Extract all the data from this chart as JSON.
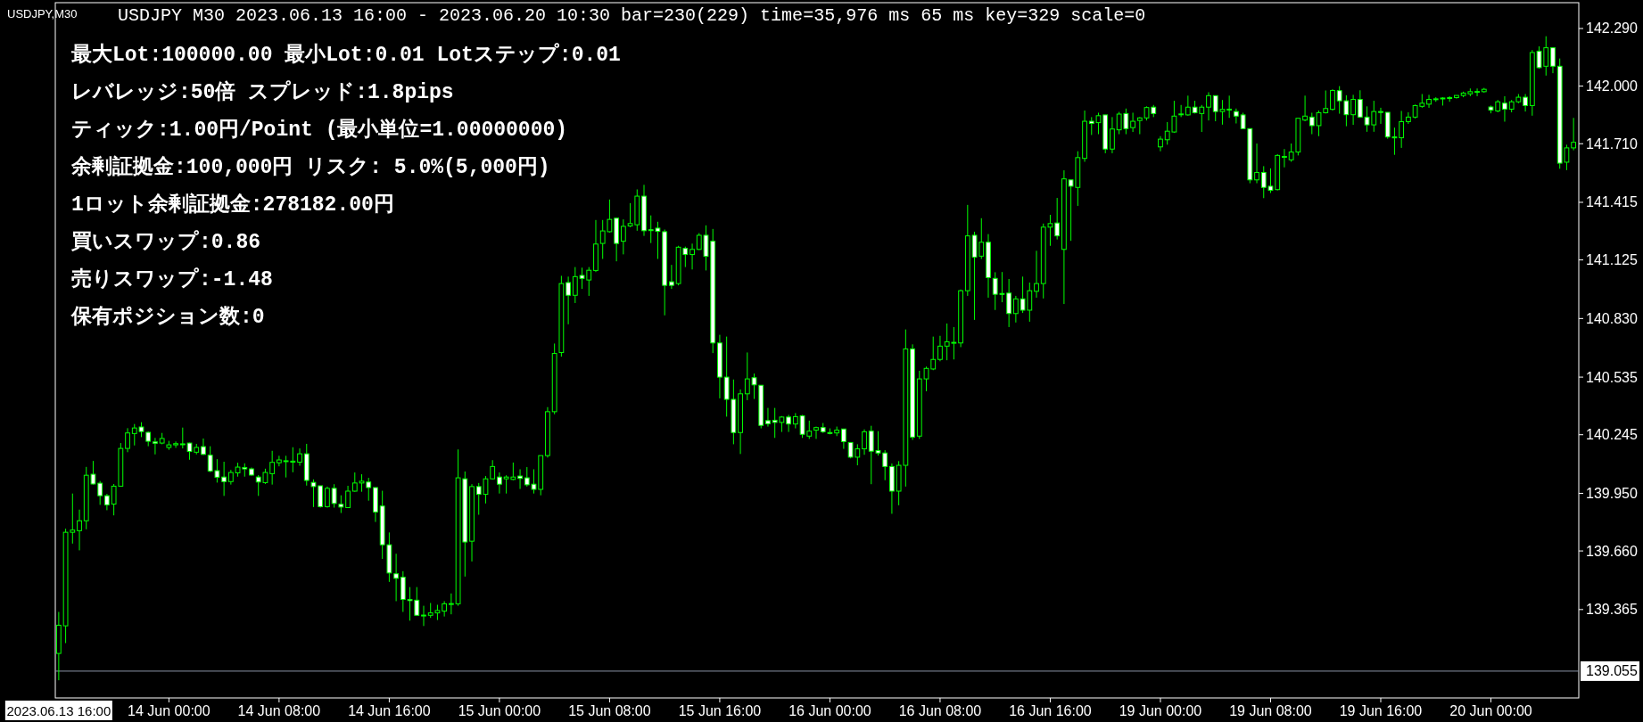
{
  "chart_data": {
    "type": "candlestick",
    "subtitle": "USDJPY,M30",
    "title": "USDJPY M30 2023.06.13 16:00 - 2023.06.20 10:30 bar=230(229) time=35,976 ms 65 ms key=329 scale=0",
    "annotations": [
      "最大Lot:100000.00 最小Lot:0.01 Lotステップ:0.01",
      "レバレッジ:50倍 スプレッド:1.8pips",
      "ティック:1.00円/Point (最小単位=1.00000000)",
      "余剰証拠金:100,000円 リスク: 5.0%(5,000円)",
      "1ロット余剰証拠金:278182.00円",
      "買いスワップ:0.86",
      "売りスワップ:-1.48",
      "保有ポジション数:0"
    ],
    "color": "#00ff00",
    "ylim": [
      138.92,
      142.42
    ],
    "yticks": [
      139.365,
      {
        "value": 139.66,
        "label": "139.660"
      },
      {
        "value": 139.95,
        "label": "139.950"
      },
      140.245,
      140.535,
      {
        "value": 140.83,
        "label": "140.830"
      },
      141.125,
      141.415,
      {
        "value": 141.71,
        "label": "141.710"
      },
      {
        "value": 142,
        "label": "142.000"
      },
      {
        "value": 142.29,
        "label": "142.290"
      }
    ],
    "ref_lines": [
      {
        "axis": "y",
        "value": 139.055,
        "label": "139.055",
        "color": "#8a94a6"
      }
    ],
    "categories": [
      "2023.06.13 16:00",
      null,
      null,
      null,
      null,
      null,
      null,
      null,
      null,
      null,
      null,
      null,
      null,
      null,
      null,
      null,
      "14 Jun 00:00",
      null,
      null,
      null,
      null,
      null,
      null,
      null,
      null,
      null,
      null,
      null,
      null,
      null,
      null,
      null,
      "14 Jun 08:00",
      null,
      null,
      null,
      null,
      null,
      null,
      null,
      null,
      null,
      null,
      null,
      null,
      null,
      null,
      null,
      "14 Jun 16:00",
      null,
      null,
      null,
      null,
      null,
      null,
      null,
      null,
      null,
      null,
      null,
      null,
      null,
      null,
      null,
      "15 Jun 00:00",
      null,
      null,
      null,
      null,
      null,
      null,
      null,
      null,
      null,
      null,
      null,
      null,
      null,
      null,
      null,
      "15 Jun 08:00",
      null,
      null,
      null,
      null,
      null,
      null,
      null,
      null,
      null,
      null,
      null,
      null,
      null,
      null,
      null,
      "15 Jun 16:00",
      null,
      null,
      null,
      null,
      null,
      null,
      null,
      null,
      null,
      null,
      null,
      null,
      null,
      null,
      null,
      "16 Jun 00:00",
      null,
      null,
      null,
      null,
      null,
      null,
      null,
      null,
      null,
      null,
      null,
      null,
      null,
      null,
      null,
      "16 Jun 08:00",
      null,
      null,
      null,
      null,
      null,
      null,
      null,
      null,
      null,
      null,
      null,
      null,
      null,
      null,
      null,
      "16 Jun 16:00",
      null,
      null,
      null,
      null,
      null,
      null,
      null,
      null,
      null,
      null,
      null,
      null,
      null,
      null,
      null,
      "19 Jun 00:00",
      null,
      null,
      null,
      null,
      null,
      null,
      null,
      null,
      null,
      null,
      null,
      null,
      null,
      null,
      null,
      "19 Jun 08:00",
      null,
      null,
      null,
      null,
      null,
      null,
      null,
      null,
      null,
      null,
      null,
      null,
      null,
      null,
      null,
      "19 Jun 16:00",
      null,
      null,
      null,
      null,
      null,
      null,
      null,
      null,
      null,
      null,
      null,
      null,
      null,
      null,
      null,
      "20 Jun 00:00",
      null,
      null,
      null,
      null,
      null,
      null,
      null,
      null,
      null,
      null,
      null,
      null
    ],
    "ohlc": [
      [
        139.144,
        139.353,
        139.009,
        139.286
      ],
      [
        139.283,
        139.772,
        139.196,
        139.754
      ],
      [
        139.754,
        139.949,
        139.697,
        139.765
      ],
      [
        139.762,
        139.868,
        139.663,
        139.812
      ],
      [
        139.812,
        140.083,
        139.769,
        140.041
      ],
      [
        140.046,
        140.113,
        139.994,
        139.997
      ],
      [
        140.001,
        140.012,
        139.892,
        139.938
      ],
      [
        139.938,
        139.947,
        139.865,
        139.892
      ],
      [
        139.896,
        139.997,
        139.839,
        139.986
      ],
      [
        139.986,
        140.203,
        139.986,
        140.176
      ],
      [
        140.176,
        140.278,
        140.157,
        140.254
      ],
      [
        140.251,
        140.299,
        140.191,
        140.279
      ],
      [
        140.284,
        140.308,
        140.233,
        140.261
      ],
      [
        140.257,
        140.261,
        140.187,
        140.212
      ],
      [
        140.209,
        140.229,
        140.146,
        140.202
      ],
      [
        140.203,
        140.254,
        140.197,
        140.226
      ],
      [
        140.181,
        140.214,
        140.169,
        140.194
      ],
      [
        140.194,
        140.211,
        140.179,
        140.2
      ],
      [
        140.199,
        140.281,
        140.176,
        140.198
      ],
      [
        140.203,
        140.205,
        140.119,
        140.161
      ],
      [
        140.157,
        140.199,
        140.146,
        140.181
      ],
      [
        140.185,
        140.226,
        140.143,
        140.146
      ],
      [
        140.142,
        140.187,
        140.056,
        140.062
      ],
      [
        140.064,
        140.122,
        140.004,
        140.031
      ],
      [
        140.032,
        140.109,
        139.937,
        140.009
      ],
      [
        140.009,
        140.068,
        139.994,
        140.055
      ],
      [
        140.053,
        140.104,
        140.034,
        140.082
      ],
      [
        140.08,
        140.101,
        140.034,
        140.073
      ],
      [
        140.073,
        140.08,
        140.039,
        140.042
      ],
      [
        140.032,
        140.042,
        139.937,
        140.007
      ],
      [
        140.004,
        140.074,
        139.997,
        140.055
      ],
      [
        140.049,
        140.164,
        139.994,
        140.106
      ],
      [
        140.104,
        140.139,
        140.086,
        140.118
      ],
      [
        140.113,
        140.139,
        140.03,
        140.114
      ],
      [
        140.107,
        140.182,
        140.056,
        140.112
      ],
      [
        140.107,
        140.176,
        140.089,
        140.149
      ],
      [
        140.149,
        140.199,
        139.989,
        140.015
      ],
      [
        140.005,
        140.02,
        139.881,
        139.984
      ],
      [
        139.988,
        139.988,
        139.878,
        139.883
      ],
      [
        139.883,
        139.984,
        139.878,
        139.975
      ],
      [
        139.975,
        139.996,
        139.878,
        139.899
      ],
      [
        139.895,
        139.94,
        139.851,
        139.881
      ],
      [
        139.878,
        139.988,
        139.878,
        139.961
      ],
      [
        139.961,
        140.055,
        139.958,
        140.002
      ],
      [
        140.002,
        140.046,
        139.958,
        140.011
      ],
      [
        140.007,
        140.028,
        139.913,
        139.979
      ],
      [
        139.979,
        139.979,
        139.806,
        139.856
      ],
      [
        139.886,
        139.963,
        139.62,
        139.691
      ],
      [
        139.691,
        139.753,
        139.504,
        139.549
      ],
      [
        139.545,
        139.646,
        139.407,
        139.522
      ],
      [
        139.528,
        139.558,
        139.353,
        139.416
      ],
      [
        139.416,
        139.478,
        139.309,
        139.41
      ],
      [
        139.412,
        139.478,
        139.336,
        139.336
      ],
      [
        139.336,
        139.384,
        139.282,
        139.337
      ],
      [
        139.336,
        139.398,
        139.323,
        139.348
      ],
      [
        139.348,
        139.389,
        139.312,
        139.36
      ],
      [
        139.357,
        139.407,
        139.33,
        139.394
      ],
      [
        139.394,
        139.446,
        139.341,
        139.395
      ],
      [
        139.394,
        140.171,
        139.384,
        140.028
      ],
      [
        140.023,
        140.06,
        139.531,
        139.705
      ],
      [
        139.709,
        139.996,
        139.607,
        139.984
      ],
      [
        139.984,
        140.002,
        139.842,
        139.945
      ],
      [
        139.945,
        140.037,
        139.899,
        140.023
      ],
      [
        140.023,
        140.117,
        140.02,
        140.085
      ],
      [
        140.032,
        140.055,
        139.949,
        139.996
      ],
      [
        140.023,
        140.041,
        139.949,
        140.032
      ],
      [
        140.02,
        140.105,
        140.016,
        140.032
      ],
      [
        140.037,
        140.071,
        139.972,
        140.025
      ],
      [
        140.028,
        140.082,
        139.984,
        139.993
      ],
      [
        139.996,
        140.071,
        139.949,
        139.97
      ],
      [
        139.97,
        140.14,
        139.94,
        140.14
      ],
      [
        140.14,
        140.384,
        140.13,
        140.361
      ],
      [
        140.361,
        140.704,
        140.348,
        140.654
      ],
      [
        140.659,
        141.045,
        140.638,
        141.006
      ],
      [
        141.011,
        141.041,
        140.801,
        140.947
      ],
      [
        140.947,
        141.089,
        140.908,
        141.041
      ],
      [
        141.047,
        141.086,
        140.979,
        141.032
      ],
      [
        141.024,
        141.089,
        140.944,
        141.073
      ],
      [
        141.072,
        141.326,
        141.064,
        141.205
      ],
      [
        141.208,
        141.326,
        141.13,
        141.271
      ],
      [
        141.267,
        141.429,
        141.263,
        141.329
      ],
      [
        141.335,
        141.335,
        141.118,
        141.208
      ],
      [
        141.219,
        141.329,
        141.153,
        141.294
      ],
      [
        141.296,
        141.411,
        141.29,
        141.308
      ],
      [
        141.302,
        141.48,
        141.272,
        141.446
      ],
      [
        141.446,
        141.503,
        141.246,
        141.272
      ],
      [
        141.277,
        141.349,
        141.21,
        141.276
      ],
      [
        141.285,
        141.317,
        141.13,
        141.269
      ],
      [
        141.267,
        141.278,
        140.846,
        140.997
      ],
      [
        141.015,
        141.1,
        140.979,
        140.997
      ],
      [
        141.006,
        141.196,
        140.997,
        141.189
      ],
      [
        141.183,
        141.192,
        141.089,
        141.152
      ],
      [
        141.152,
        141.207,
        141.077,
        141.178
      ],
      [
        141.178,
        141.26,
        141.175,
        141.249
      ],
      [
        141.249,
        141.299,
        141.072,
        141.143
      ],
      [
        141.219,
        141.281,
        140.656,
        140.707
      ],
      [
        140.707,
        140.748,
        140.428,
        140.535
      ],
      [
        140.535,
        140.739,
        140.336,
        140.423
      ],
      [
        140.423,
        140.523,
        140.197,
        140.256
      ],
      [
        140.256,
        140.473,
        140.148,
        140.451
      ],
      [
        140.451,
        140.659,
        140.419,
        140.526
      ],
      [
        140.532,
        140.553,
        140.425,
        140.496
      ],
      [
        140.494,
        140.494,
        140.277,
        140.292
      ],
      [
        140.316,
        140.38,
        140.286,
        140.3
      ],
      [
        140.318,
        140.38,
        140.229,
        140.307
      ],
      [
        140.307,
        140.339,
        140.259,
        140.334
      ],
      [
        140.334,
        140.345,
        140.259,
        140.299
      ],
      [
        140.299,
        140.354,
        140.277,
        140.336
      ],
      [
        140.34,
        140.345,
        140.229,
        140.247
      ],
      [
        140.238,
        140.316,
        140.224,
        140.263
      ],
      [
        140.268,
        140.286,
        140.224,
        140.281
      ],
      [
        140.281,
        140.304,
        140.254,
        140.26
      ],
      [
        140.256,
        140.277,
        140.247,
        140.255
      ],
      [
        140.254,
        140.286,
        140.238,
        140.268
      ],
      [
        140.274,
        140.274,
        140.174,
        140.21
      ],
      [
        140.206,
        140.206,
        140.126,
        140.132
      ],
      [
        140.132,
        140.197,
        140.091,
        140.174
      ],
      [
        140.174,
        140.272,
        140.144,
        140.26
      ],
      [
        140.263,
        140.29,
        139.996,
        140.162
      ],
      [
        140.165,
        140.263,
        140.14,
        140.153
      ],
      [
        140.153,
        140.167,
        140.016,
        140.085
      ],
      [
        140.085,
        140.1,
        139.847,
        139.961
      ],
      [
        139.961,
        140.112,
        139.89,
        140.091
      ],
      [
        140.091,
        140.775,
        139.984,
        140.677
      ],
      [
        140.677,
        140.7,
        140.219,
        140.233
      ],
      [
        140.238,
        140.567,
        140.224,
        140.526
      ],
      [
        140.526,
        140.588,
        140.464,
        140.579
      ],
      [
        140.576,
        140.739,
        140.57,
        140.624
      ],
      [
        140.624,
        140.743,
        140.615,
        140.691
      ],
      [
        140.691,
        140.805,
        140.62,
        140.713
      ],
      [
        140.709,
        140.787,
        140.624,
        140.71
      ],
      [
        140.707,
        140.976,
        140.686,
        140.97
      ],
      [
        140.97,
        141.402,
        140.944,
        141.246
      ],
      [
        141.249,
        141.267,
        140.823,
        141.139
      ],
      [
        141.144,
        141.335,
        141.13,
        141.214
      ],
      [
        141.214,
        141.255,
        140.935,
        141.036
      ],
      [
        141.032,
        141.063,
        140.873,
        140.952
      ],
      [
        140.956,
        141.064,
        140.912,
        140.955
      ],
      [
        140.958,
        141.029,
        140.787,
        140.855
      ],
      [
        140.855,
        140.944,
        140.81,
        140.929
      ],
      [
        140.929,
        141.041,
        140.858,
        140.872
      ],
      [
        140.872,
        141.011,
        140.814,
        140.97
      ],
      [
        140.967,
        141.171,
        140.935,
        141.006
      ],
      [
        141.006,
        141.308,
        140.931,
        141.29
      ],
      [
        141.29,
        141.352,
        141.196,
        141.308
      ],
      [
        141.311,
        141.437,
        141.228,
        141.246
      ],
      [
        141.178,
        141.576,
        140.903,
        141.533
      ],
      [
        141.528,
        141.528,
        141.221,
        141.496
      ],
      [
        141.49,
        141.672,
        141.397,
        141.64
      ],
      [
        141.636,
        141.877,
        141.619,
        141.823
      ],
      [
        141.823,
        141.844,
        141.754,
        141.812
      ],
      [
        141.816,
        141.866,
        141.758,
        141.851
      ],
      [
        141.855,
        141.855,
        141.662,
        141.683
      ],
      [
        141.683,
        141.844,
        141.662,
        141.784
      ],
      [
        141.78,
        141.87,
        141.758,
        141.859
      ],
      [
        141.862,
        141.887,
        141.758,
        141.786
      ],
      [
        141.791,
        141.866,
        141.769,
        141.823
      ],
      [
        141.827,
        141.844,
        141.758,
        141.84
      ],
      [
        141.84,
        141.898,
        141.827,
        141.892
      ],
      [
        141.894,
        141.905,
        141.844,
        141.862
      ],
      [
        141.694,
        141.748,
        141.672,
        141.733
      ],
      [
        141.73,
        141.819,
        141.705,
        141.773
      ],
      [
        141.769,
        141.926,
        141.765,
        141.849
      ],
      [
        141.859,
        141.905,
        141.844,
        141.86
      ],
      [
        141.855,
        141.952,
        141.851,
        141.894
      ],
      [
        141.894,
        141.926,
        141.862,
        141.866
      ],
      [
        141.862,
        141.905,
        141.769,
        141.894
      ],
      [
        141.894,
        141.969,
        141.827,
        141.952
      ],
      [
        141.952,
        141.952,
        141.823,
        141.872
      ],
      [
        141.872,
        141.93,
        141.806,
        141.883
      ],
      [
        141.883,
        141.952,
        141.84,
        141.884
      ],
      [
        141.872,
        141.887,
        141.812,
        141.849
      ],
      [
        141.855,
        141.866,
        141.786,
        141.786
      ],
      [
        141.786,
        141.786,
        141.511,
        141.528
      ],
      [
        141.528,
        141.711,
        141.511,
        141.565
      ],
      [
        141.565,
        141.597,
        141.436,
        141.49
      ],
      [
        141.496,
        141.586,
        141.462,
        141.475
      ],
      [
        141.479,
        141.657,
        141.475,
        141.651
      ],
      [
        141.645,
        141.683,
        141.591,
        141.646
      ],
      [
        141.629,
        141.711,
        141.619,
        141.668
      ],
      [
        141.668,
        141.838,
        141.651,
        141.838
      ],
      [
        141.829,
        141.952,
        141.823,
        141.849
      ],
      [
        141.844,
        141.866,
        141.758,
        141.801
      ],
      [
        141.801,
        141.877,
        141.748,
        141.866
      ],
      [
        141.866,
        141.978,
        141.862,
        141.887
      ],
      [
        141.883,
        141.984,
        141.877,
        141.978
      ],
      [
        141.977,
        142,
        141.861,
        141.926
      ],
      [
        141.926,
        141.954,
        141.798,
        141.856
      ],
      [
        141.856,
        141.956,
        141.805,
        141.933
      ],
      [
        141.933,
        141.979,
        141.84,
        141.844
      ],
      [
        141.844,
        141.898,
        141.77,
        141.805
      ],
      [
        141.805,
        141.926,
        141.77,
        141.872
      ],
      [
        141.872,
        141.891,
        141.81,
        141.871
      ],
      [
        141.868,
        141.868,
        141.735,
        141.744
      ],
      [
        141.744,
        141.791,
        141.654,
        141.743
      ],
      [
        141.74,
        141.875,
        141.689,
        141.821
      ],
      [
        141.821,
        141.868,
        141.81,
        141.844
      ],
      [
        141.844,
        141.907,
        141.837,
        141.902
      ],
      [
        141.898,
        141.96,
        141.891,
        141.914
      ],
      [
        141.909,
        141.956,
        141.891,
        141.933
      ],
      [
        141.935,
        141.944,
        141.921,
        141.936
      ],
      [
        141.939,
        141.944,
        141.902,
        141.94
      ],
      [
        141.941,
        141.949,
        141.921,
        141.942
      ],
      [
        141.942,
        141.953,
        141.937,
        141.953
      ],
      [
        141.953,
        141.972,
        141.944,
        141.965
      ],
      [
        141.961,
        141.988,
        141.949,
        141.972
      ],
      [
        141.972,
        141.988,
        141.949,
        141.973
      ],
      [
        141.972,
        141.991,
        141.967,
        141.984
      ],
      [
        141.895,
        141.902,
        141.863,
        141.879
      ],
      [
        141.875,
        141.93,
        141.868,
        141.921
      ],
      [
        141.914,
        141.949,
        141.821,
        141.884
      ],
      [
        141.884,
        141.93,
        141.868,
        141.921
      ],
      [
        141.921,
        141.96,
        141.914,
        141.944
      ],
      [
        141.944,
        141.96,
        141.872,
        141.902
      ],
      [
        141.902,
        142.181,
        141.851,
        142.169
      ],
      [
        142.176,
        142.2,
        142.088,
        142.093
      ],
      [
        142.1,
        142.251,
        142.053,
        142.193
      ],
      [
        142.193,
        142.193,
        142.065,
        142.1
      ],
      [
        142.1,
        142.139,
        141.584,
        141.612
      ],
      [
        141.617,
        141.705,
        141.577,
        141.689
      ],
      [
        141.689,
        141.84,
        141.677,
        141.717
      ]
    ]
  }
}
